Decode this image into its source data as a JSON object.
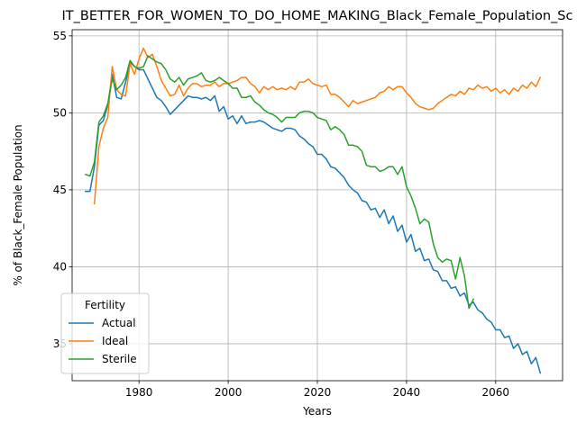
{
  "chart_data": {
    "type": "line",
    "title": "IT_BETTER_FOR_WOMEN_TO_DO_HOME_MAKING_Black_Female_Population_Sc",
    "xlabel": "Years",
    "ylabel": "% of Black_Female Population",
    "xlim": [
      1965,
      2075
    ],
    "ylim": [
      32.6,
      55.4
    ],
    "xticks": [
      1980,
      2000,
      2020,
      2040,
      2060
    ],
    "yticks": [
      35,
      40,
      45,
      50,
      55
    ],
    "grid": true,
    "legend": {
      "title": "Fertility",
      "placement": "lower-left"
    },
    "series": [
      {
        "name": "Actual",
        "color": "#1f77b4",
        "x": [
          1968,
          1969,
          1970,
          1971,
          1972,
          1973,
          1974,
          1975,
          1976,
          1977,
          1978,
          1979,
          1980,
          1981,
          1982,
          1983,
          1984,
          1985,
          1986,
          1987,
          1988,
          1989,
          1990,
          1991,
          1992,
          1993,
          1994,
          1995,
          1996,
          1997,
          1998,
          1999,
          2000,
          2001,
          2002,
          2003,
          2004,
          2005,
          2006,
          2007,
          2008,
          2009,
          2010,
          2011,
          2012,
          2013,
          2014,
          2015,
          2016,
          2017,
          2018,
          2019,
          2020,
          2021,
          2022,
          2023,
          2024,
          2025,
          2026,
          2027,
          2028,
          2029,
          2030,
          2031,
          2032,
          2033,
          2034,
          2035,
          2036,
          2037,
          2038,
          2039,
          2040,
          2041,
          2042,
          2043,
          2044,
          2045,
          2046,
          2047,
          2048,
          2049,
          2050,
          2051,
          2052,
          2053,
          2054,
          2055,
          2056,
          2057,
          2058,
          2059,
          2060,
          2061,
          2062,
          2063,
          2064,
          2065,
          2066,
          2067,
          2068,
          2069,
          2070
        ],
        "values": [
          44.9,
          44.9,
          46.5,
          49.2,
          49.5,
          50.5,
          52.5,
          51.0,
          50.9,
          52.0,
          53.3,
          53.0,
          52.8,
          52.8,
          52.2,
          51.6,
          51.0,
          50.8,
          50.4,
          49.9,
          50.2,
          50.5,
          50.8,
          51.1,
          51.0,
          51.0,
          50.9,
          51.0,
          50.8,
          51.1,
          50.1,
          50.4,
          49.6,
          49.8,
          49.3,
          49.8,
          49.3,
          49.4,
          49.4,
          49.5,
          49.4,
          49.2,
          49.0,
          48.9,
          48.8,
          49.0,
          49.0,
          48.9,
          48.5,
          48.3,
          48.0,
          47.8,
          47.3,
          47.3,
          47.0,
          46.5,
          46.4,
          46.1,
          45.8,
          45.3,
          45.0,
          44.8,
          44.3,
          44.2,
          43.7,
          43.8,
          43.2,
          43.7,
          42.8,
          43.3,
          42.3,
          42.7,
          41.6,
          42.1,
          41.0,
          41.2,
          40.4,
          40.5,
          39.8,
          39.7,
          39.1,
          39.1,
          38.6,
          38.7,
          38.1,
          38.3,
          37.5,
          37.7,
          37.2,
          37.0,
          36.6,
          36.4,
          35.9,
          35.9,
          35.4,
          35.5,
          34.7,
          35.0,
          34.3,
          34.5,
          33.7,
          34.1,
          33.1
        ]
      },
      {
        "name": "Ideal",
        "color": "#ff7f0e",
        "x": [
          1970,
          1971,
          1972,
          1973,
          1974,
          1975,
          1976,
          1977,
          1978,
          1979,
          1980,
          1981,
          1982,
          1983,
          1984,
          1985,
          1986,
          1987,
          1988,
          1989,
          1990,
          1991,
          1992,
          1993,
          1994,
          1995,
          1996,
          1997,
          1998,
          1999,
          2000,
          2001,
          2002,
          2003,
          2004,
          2005,
          2006,
          2007,
          2008,
          2009,
          2010,
          2011,
          2012,
          2013,
          2014,
          2015,
          2016,
          2017,
          2018,
          2019,
          2020,
          2021,
          2022,
          2023,
          2024,
          2025,
          2026,
          2027,
          2028,
          2029,
          2030,
          2031,
          2032,
          2033,
          2034,
          2035,
          2036,
          2037,
          2038,
          2039,
          2040,
          2041,
          2042,
          2043,
          2044,
          2045,
          2046,
          2047,
          2048,
          2049,
          2050,
          2051,
          2052,
          2053,
          2054,
          2055,
          2056,
          2057,
          2058,
          2059,
          2060,
          2061,
          2062,
          2063,
          2064,
          2065,
          2066,
          2067,
          2068,
          2069,
          2070
        ],
        "values": [
          44.1,
          47.8,
          49.0,
          49.7,
          53.0,
          51.5,
          51.2,
          51.1,
          53.2,
          52.5,
          53.5,
          54.2,
          53.6,
          53.8,
          53.0,
          52.1,
          51.6,
          51.1,
          51.2,
          51.8,
          51.1,
          51.6,
          51.9,
          51.9,
          51.7,
          51.8,
          51.8,
          52.0,
          51.7,
          51.9,
          51.9,
          52.0,
          52.1,
          52.3,
          52.3,
          51.9,
          51.7,
          51.3,
          51.7,
          51.5,
          51.7,
          51.5,
          51.6,
          51.5,
          51.7,
          51.5,
          52.0,
          52.0,
          52.2,
          51.9,
          51.8,
          51.7,
          51.8,
          51.2,
          51.2,
          51.0,
          50.7,
          50.4,
          50.8,
          50.6,
          50.7,
          50.8,
          50.9,
          51.0,
          51.3,
          51.4,
          51.7,
          51.5,
          51.7,
          51.7,
          51.3,
          51.0,
          50.6,
          50.4,
          50.3,
          50.2,
          50.3,
          50.6,
          50.8,
          51.0,
          51.2,
          51.1,
          51.4,
          51.2,
          51.6,
          51.5,
          51.8,
          51.6,
          51.7,
          51.4,
          51.6,
          51.3,
          51.5,
          51.2,
          51.6,
          51.4,
          51.8,
          51.6,
          52.0,
          51.7,
          52.3
        ]
      },
      {
        "name": "Sterile",
        "color": "#2ca02c",
        "x": [
          1968,
          1969,
          1970,
          1971,
          1972,
          1973,
          1974,
          1975,
          1976,
          1977,
          1978,
          1979,
          1980,
          1981,
          1982,
          1983,
          1984,
          1985,
          1986,
          1987,
          1988,
          1989,
          1990,
          1991,
          1992,
          1993,
          1994,
          1995,
          1996,
          1997,
          1998,
          1999,
          2000,
          2001,
          2002,
          2003,
          2004,
          2005,
          2006,
          2007,
          2008,
          2009,
          2010,
          2011,
          2012,
          2013,
          2014,
          2015,
          2016,
          2017,
          2018,
          2019,
          2020,
          2021,
          2022,
          2023,
          2024,
          2025,
          2026,
          2027,
          2028,
          2029,
          2030,
          2031,
          2032,
          2033,
          2034,
          2035,
          2036,
          2037,
          2038,
          2039,
          2040,
          2041,
          2042,
          2043,
          2044,
          2045,
          2046,
          2047,
          2048,
          2049,
          2050,
          2051,
          2052,
          2053,
          2054,
          2055
        ],
        "values": [
          46.0,
          45.9,
          46.8,
          49.4,
          49.8,
          50.6,
          52.2,
          51.5,
          51.8,
          52.3,
          53.4,
          53.0,
          52.9,
          53.0,
          53.7,
          53.5,
          53.3,
          53.2,
          52.8,
          52.2,
          52.0,
          52.3,
          51.8,
          52.2,
          52.3,
          52.4,
          52.6,
          52.1,
          52.0,
          52.1,
          52.3,
          52.1,
          51.9,
          51.6,
          51.6,
          51.0,
          51.0,
          51.1,
          50.7,
          50.5,
          50.2,
          50.0,
          49.9,
          49.7,
          49.4,
          49.7,
          49.7,
          49.7,
          50.0,
          50.1,
          50.1,
          50.0,
          49.7,
          49.6,
          49.5,
          48.9,
          49.1,
          48.9,
          48.6,
          47.9,
          47.9,
          47.8,
          47.5,
          46.6,
          46.5,
          46.5,
          46.2,
          46.3,
          46.5,
          46.5,
          46.0,
          46.5,
          45.2,
          44.6,
          43.8,
          42.8,
          43.1,
          42.9,
          41.5,
          40.6,
          40.3,
          40.5,
          40.4,
          39.2,
          40.6,
          39.4,
          37.3,
          37.9
        ]
      }
    ]
  }
}
